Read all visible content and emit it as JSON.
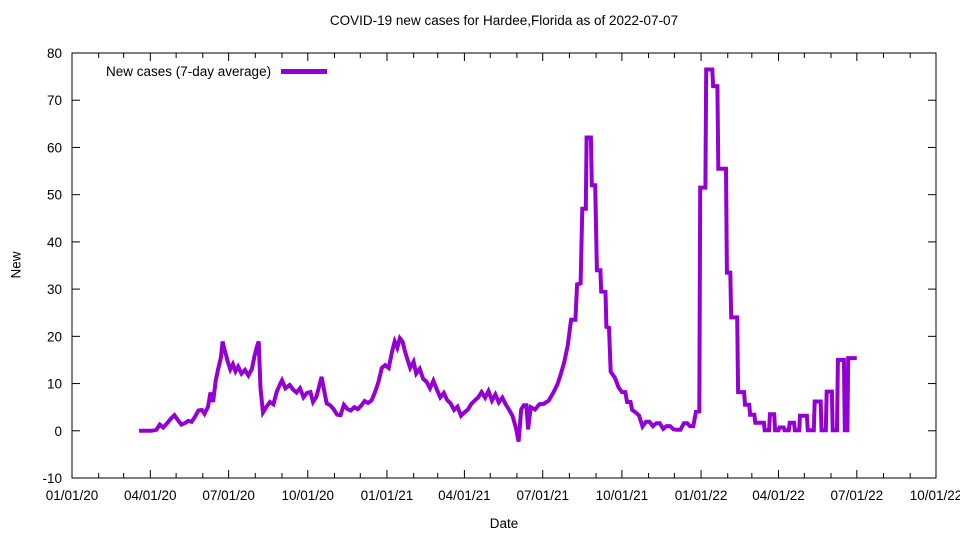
{
  "chart_data": {
    "type": "line",
    "title": "COVID-19 new cases for Hardee,Florida as of 2022-07-07",
    "xlabel": "Date",
    "ylabel": "New",
    "ylim": [
      -10,
      80
    ],
    "x_range": [
      "2020-01-01",
      "2022-10-01"
    ],
    "grid": false,
    "legend_position": "top-left",
    "background_color": "#ffffff",
    "axis_color": "#000000",
    "y_ticks": [
      -10,
      0,
      10,
      20,
      30,
      40,
      50,
      60,
      70,
      80
    ],
    "x_ticks": [
      {
        "date": "2020-01-01",
        "label": "01/01/20"
      },
      {
        "date": "2020-04-01",
        "label": "04/01/20"
      },
      {
        "date": "2020-07-01",
        "label": "07/01/20"
      },
      {
        "date": "2020-10-01",
        "label": "10/01/20"
      },
      {
        "date": "2021-01-01",
        "label": "01/01/21"
      },
      {
        "date": "2021-04-01",
        "label": "04/01/21"
      },
      {
        "date": "2021-07-01",
        "label": "07/01/21"
      },
      {
        "date": "2021-10-01",
        "label": "10/01/21"
      },
      {
        "date": "2022-01-01",
        "label": "01/01/22"
      },
      {
        "date": "2022-04-01",
        "label": "04/01/22"
      },
      {
        "date": "2022-07-01",
        "label": "07/01/22"
      },
      {
        "date": "2022-10-01",
        "label": "10/01/22"
      }
    ],
    "x_minor_ticks": [
      "2020-02-01",
      "2020-03-01",
      "2020-05-01",
      "2020-06-01",
      "2020-08-01",
      "2020-09-01",
      "2020-11-01",
      "2020-12-01",
      "2021-02-01",
      "2021-03-01",
      "2021-05-01",
      "2021-06-01",
      "2021-08-01",
      "2021-09-01",
      "2021-11-01",
      "2021-12-01",
      "2022-02-01",
      "2022-03-01",
      "2022-05-01",
      "2022-06-01",
      "2022-08-01",
      "2022-09-01"
    ],
    "series": [
      {
        "name": "New cases (7-day average)",
        "color": "#9400d3",
        "line_width": 4,
        "points": [
          [
            "2020-03-19",
            0
          ],
          [
            "2020-03-26",
            0
          ],
          [
            "2020-04-02",
            0
          ],
          [
            "2020-04-08",
            0.2
          ],
          [
            "2020-04-12",
            1.3
          ],
          [
            "2020-04-16",
            0.7
          ],
          [
            "2020-04-21",
            1.7
          ],
          [
            "2020-04-25",
            2.6
          ],
          [
            "2020-04-29",
            3.3
          ],
          [
            "2020-05-03",
            2.3
          ],
          [
            "2020-05-07",
            1.3
          ],
          [
            "2020-05-11",
            1.6
          ],
          [
            "2020-05-15",
            2.1
          ],
          [
            "2020-05-19",
            1.9
          ],
          [
            "2020-05-23",
            3.0
          ],
          [
            "2020-05-27",
            4.3
          ],
          [
            "2020-05-31",
            4.4
          ],
          [
            "2020-06-03",
            3.6
          ],
          [
            "2020-06-07",
            5.1
          ],
          [
            "2020-06-10",
            8.1
          ],
          [
            "2020-06-13",
            6.1
          ],
          [
            "2020-06-16",
            10.6
          ],
          [
            "2020-06-19",
            13.2
          ],
          [
            "2020-06-22",
            15.5
          ],
          [
            "2020-06-24",
            18.9
          ],
          [
            "2020-06-26",
            17.3
          ],
          [
            "2020-06-28",
            16.1
          ],
          [
            "2020-06-30",
            14.6
          ],
          [
            "2020-07-03",
            13.0
          ],
          [
            "2020-07-06",
            14.1
          ],
          [
            "2020-07-09",
            12.6
          ],
          [
            "2020-07-12",
            13.6
          ],
          [
            "2020-07-16",
            12.1
          ],
          [
            "2020-07-20",
            12.9
          ],
          [
            "2020-07-24",
            11.7
          ],
          [
            "2020-07-28",
            13.1
          ],
          [
            "2020-07-31",
            15.7
          ],
          [
            "2020-08-03",
            17.9
          ],
          [
            "2020-08-05",
            18.9
          ],
          [
            "2020-08-07",
            9.0
          ],
          [
            "2020-08-10",
            3.9
          ],
          [
            "2020-08-14",
            5.1
          ],
          [
            "2020-08-18",
            6.1
          ],
          [
            "2020-08-22",
            5.6
          ],
          [
            "2020-08-26",
            8.3
          ],
          [
            "2020-08-30",
            10.0
          ],
          [
            "2020-09-01",
            10.7
          ],
          [
            "2020-09-05",
            9.0
          ],
          [
            "2020-09-10",
            9.7
          ],
          [
            "2020-09-14",
            8.7
          ],
          [
            "2020-09-18",
            8.1
          ],
          [
            "2020-09-22",
            9.0
          ],
          [
            "2020-09-26",
            7.1
          ],
          [
            "2020-09-30",
            8.0
          ],
          [
            "2020-10-04",
            8.2
          ],
          [
            "2020-10-07",
            6.1
          ],
          [
            "2020-10-11",
            7.2
          ],
          [
            "2020-10-14",
            9.3
          ],
          [
            "2020-10-17",
            11.4
          ],
          [
            "2020-10-20",
            8.6
          ],
          [
            "2020-10-23",
            5.8
          ],
          [
            "2020-10-27",
            5.4
          ],
          [
            "2020-10-31",
            4.6
          ],
          [
            "2020-11-04",
            3.4
          ],
          [
            "2020-11-08",
            3.3
          ],
          [
            "2020-11-12",
            5.5
          ],
          [
            "2020-11-16",
            4.6
          ],
          [
            "2020-11-20",
            4.3
          ],
          [
            "2020-11-24",
            5.0
          ],
          [
            "2020-11-28",
            4.6
          ],
          [
            "2020-12-02",
            5.3
          ],
          [
            "2020-12-06",
            6.3
          ],
          [
            "2020-12-10",
            5.9
          ],
          [
            "2020-12-14",
            6.4
          ],
          [
            "2020-12-18",
            8.1
          ],
          [
            "2020-12-22",
            10.3
          ],
          [
            "2020-12-26",
            13.3
          ],
          [
            "2020-12-30",
            13.9
          ],
          [
            "2021-01-03",
            13.3
          ],
          [
            "2021-01-07",
            16.8
          ],
          [
            "2021-01-10",
            18.9
          ],
          [
            "2021-01-13",
            17.6
          ],
          [
            "2021-01-16",
            19.6
          ],
          [
            "2021-01-19",
            18.9
          ],
          [
            "2021-01-22",
            16.8
          ],
          [
            "2021-01-25",
            15.0
          ],
          [
            "2021-01-28",
            13.3
          ],
          [
            "2021-02-01",
            14.6
          ],
          [
            "2021-02-04",
            12.1
          ],
          [
            "2021-02-08",
            13.1
          ],
          [
            "2021-02-12",
            11.0
          ],
          [
            "2021-02-16",
            10.4
          ],
          [
            "2021-02-20",
            9.0
          ],
          [
            "2021-02-24",
            10.6
          ],
          [
            "2021-02-28",
            8.7
          ],
          [
            "2021-03-04",
            7.1
          ],
          [
            "2021-03-08",
            8.0
          ],
          [
            "2021-03-12",
            6.5
          ],
          [
            "2021-03-16",
            5.8
          ],
          [
            "2021-03-20",
            4.4
          ],
          [
            "2021-03-24",
            5.1
          ],
          [
            "2021-03-28",
            3.2
          ],
          [
            "2021-04-01",
            3.9
          ],
          [
            "2021-04-05",
            4.5
          ],
          [
            "2021-04-09",
            5.7
          ],
          [
            "2021-04-13",
            6.4
          ],
          [
            "2021-04-17",
            7.1
          ],
          [
            "2021-04-21",
            8.2
          ],
          [
            "2021-04-25",
            7.0
          ],
          [
            "2021-04-29",
            8.4
          ],
          [
            "2021-05-03",
            6.4
          ],
          [
            "2021-05-07",
            7.7
          ],
          [
            "2021-05-11",
            6.0
          ],
          [
            "2021-05-15",
            7.0
          ],
          [
            "2021-05-19",
            5.6
          ],
          [
            "2021-05-23",
            4.4
          ],
          [
            "2021-05-27",
            3.1
          ],
          [
            "2021-05-31",
            0.5
          ],
          [
            "2021-06-03",
            -2.3
          ],
          [
            "2021-06-06",
            4.5
          ],
          [
            "2021-06-09",
            5.4
          ],
          [
            "2021-06-12",
            5.4
          ],
          [
            "2021-06-14",
            0.3
          ],
          [
            "2021-06-17",
            5.0
          ],
          [
            "2021-06-22",
            4.5
          ],
          [
            "2021-06-27",
            5.6
          ],
          [
            "2021-07-02",
            5.7
          ],
          [
            "2021-07-08",
            6.4
          ],
          [
            "2021-07-13",
            8.0
          ],
          [
            "2021-07-18",
            9.8
          ],
          [
            "2021-07-22",
            12.0
          ],
          [
            "2021-07-26",
            14.5
          ],
          [
            "2021-07-30",
            18.0
          ],
          [
            "2021-08-03",
            23.5
          ],
          [
            "2021-08-08",
            23.5
          ],
          [
            "2021-08-10",
            31.0
          ],
          [
            "2021-08-14",
            31.2
          ],
          [
            "2021-08-16",
            47.0
          ],
          [
            "2021-08-20",
            47.0
          ],
          [
            "2021-08-21",
            62.1
          ],
          [
            "2021-08-26",
            62.1
          ],
          [
            "2021-08-27",
            52.0
          ],
          [
            "2021-08-31",
            52.0
          ],
          [
            "2021-09-02",
            34.0
          ],
          [
            "2021-09-06",
            34.0
          ],
          [
            "2021-09-07",
            29.5
          ],
          [
            "2021-09-12",
            29.4
          ],
          [
            "2021-09-13",
            22.0
          ],
          [
            "2021-09-16",
            21.8
          ],
          [
            "2021-09-18",
            12.5
          ],
          [
            "2021-09-23",
            11.2
          ],
          [
            "2021-09-27",
            9.2
          ],
          [
            "2021-10-01",
            8.2
          ],
          [
            "2021-10-05",
            8.2
          ],
          [
            "2021-10-07",
            6.1
          ],
          [
            "2021-10-11",
            6.1
          ],
          [
            "2021-10-13",
            4.4
          ],
          [
            "2021-10-17",
            3.9
          ],
          [
            "2021-10-21",
            3.2
          ],
          [
            "2021-10-25",
            0.9
          ],
          [
            "2021-10-29",
            1.9
          ],
          [
            "2021-11-02",
            1.9
          ],
          [
            "2021-11-06",
            1.0
          ],
          [
            "2021-11-10",
            1.6
          ],
          [
            "2021-11-14",
            1.6
          ],
          [
            "2021-11-18",
            0.4
          ],
          [
            "2021-11-22",
            1.0
          ],
          [
            "2021-11-26",
            1.0
          ],
          [
            "2021-11-30",
            0.3
          ],
          [
            "2021-12-04",
            0.2
          ],
          [
            "2021-12-08",
            0.2
          ],
          [
            "2021-12-12",
            1.6
          ],
          [
            "2021-12-16",
            1.6
          ],
          [
            "2021-12-19",
            1.0
          ],
          [
            "2021-12-23",
            1.0
          ],
          [
            "2021-12-26",
            4.0
          ],
          [
            "2021-12-30",
            4.1
          ],
          [
            "2021-12-31",
            51.5
          ],
          [
            "2022-01-06",
            51.5
          ],
          [
            "2022-01-07",
            76.5
          ],
          [
            "2022-01-14",
            76.5
          ],
          [
            "2022-01-15",
            73.0
          ],
          [
            "2022-01-20",
            73.0
          ],
          [
            "2022-01-21",
            55.5
          ],
          [
            "2022-01-30",
            55.5
          ],
          [
            "2022-01-31",
            33.5
          ],
          [
            "2022-02-04",
            33.5
          ],
          [
            "2022-02-05",
            24.0
          ],
          [
            "2022-02-12",
            24.0
          ],
          [
            "2022-02-13",
            8.2
          ],
          [
            "2022-02-20",
            8.2
          ],
          [
            "2022-02-21",
            5.5
          ],
          [
            "2022-02-26",
            5.5
          ],
          [
            "2022-02-27",
            3.4
          ],
          [
            "2022-03-04",
            3.4
          ],
          [
            "2022-03-05",
            1.7
          ],
          [
            "2022-03-15",
            1.7
          ],
          [
            "2022-03-16",
            0.1
          ],
          [
            "2022-03-21",
            0.1
          ],
          [
            "2022-03-22",
            3.5
          ],
          [
            "2022-03-27",
            3.5
          ],
          [
            "2022-03-28",
            0.1
          ],
          [
            "2022-04-01",
            0.1
          ],
          [
            "2022-04-02",
            0.7
          ],
          [
            "2022-04-07",
            0.7
          ],
          [
            "2022-04-08",
            0.1
          ],
          [
            "2022-04-13",
            0.1
          ],
          [
            "2022-04-14",
            1.7
          ],
          [
            "2022-04-19",
            1.7
          ],
          [
            "2022-04-20",
            0.1
          ],
          [
            "2022-04-25",
            0.1
          ],
          [
            "2022-04-26",
            3.2
          ],
          [
            "2022-05-04",
            3.2
          ],
          [
            "2022-05-05",
            0.1
          ],
          [
            "2022-05-12",
            0.1
          ],
          [
            "2022-05-13",
            6.2
          ],
          [
            "2022-05-20",
            6.2
          ],
          [
            "2022-05-21",
            0.1
          ],
          [
            "2022-05-26",
            0.1
          ],
          [
            "2022-05-27",
            8.3
          ],
          [
            "2022-06-02",
            8.3
          ],
          [
            "2022-06-03",
            0.1
          ],
          [
            "2022-06-08",
            0.1
          ],
          [
            "2022-06-09",
            15.0
          ],
          [
            "2022-06-16",
            15.0
          ],
          [
            "2022-06-17",
            0.1
          ],
          [
            "2022-06-20",
            0.1
          ],
          [
            "2022-06-21",
            15.4
          ],
          [
            "2022-07-01",
            15.4
          ]
        ]
      }
    ]
  }
}
